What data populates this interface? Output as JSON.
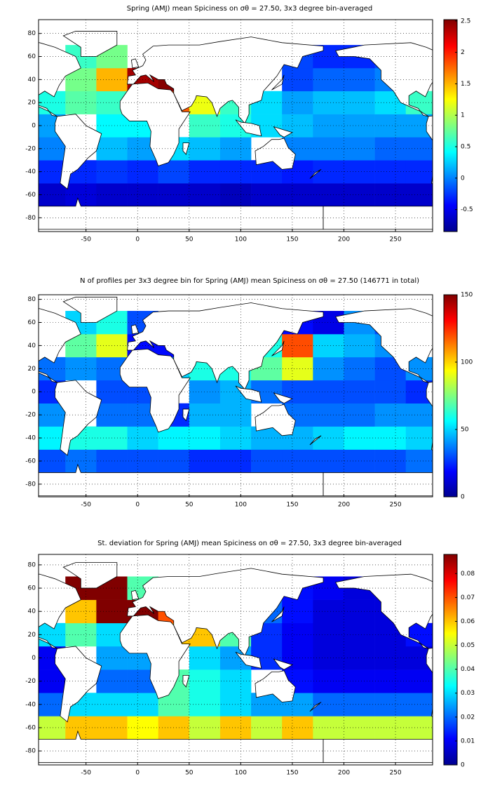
{
  "chart_data": [
    {
      "type": "heatmap",
      "title": "Spring (AMJ) mean Spiciness on σθ = 27.50, 3x3 degree bin-averaged",
      "xbins": [
        -100,
        -70,
        -40,
        -10,
        20,
        50,
        80,
        110,
        140,
        170,
        200,
        230,
        260,
        290
      ],
      "ybins": [
        -90,
        -70,
        -50,
        -30,
        -10,
        10,
        30,
        50,
        70,
        90
      ],
      "values": [
        [
          null,
          null,
          null,
          null,
          null,
          null,
          null,
          null,
          null,
          null,
          null,
          null,
          null
        ],
        [
          -0.6,
          -0.55,
          -0.6,
          -0.6,
          -0.6,
          -0.6,
          -0.65,
          -0.6,
          -0.6,
          -0.6,
          -0.6,
          -0.6,
          -0.6
        ],
        [
          -0.3,
          -0.3,
          -0.25,
          -0.3,
          -0.2,
          -0.3,
          -0.3,
          -0.3,
          -0.35,
          -0.3,
          -0.3,
          -0.3,
          -0.3
        ],
        [
          0,
          null,
          0.2,
          0.1,
          0.3,
          0.2,
          0.1,
          null,
          0,
          0,
          0,
          -0.1,
          -0.1
        ],
        [
          0.1,
          null,
          0.4,
          0.4,
          null,
          0.6,
          0.5,
          0.3,
          0.2,
          0.1,
          0.1,
          0.1,
          0.1
        ],
        [
          0.5,
          0.7,
          0.6,
          null,
          1.8,
          1.2,
          0.6,
          0.3,
          0.1,
          0.2,
          0.2,
          0.3,
          0.6
        ],
        [
          null,
          0.8,
          1.5,
          2.4,
          2.5,
          null,
          null,
          null,
          -0.2,
          -0.1,
          -0.1,
          0,
          null
        ],
        [
          null,
          0.6,
          0.8,
          null,
          null,
          null,
          null,
          null,
          -0.2,
          -0.3,
          -0.3,
          -0.2,
          null
        ],
        [
          null,
          null,
          null,
          null,
          null,
          null,
          null,
          null,
          null,
          null,
          null,
          null,
          null
        ]
      ],
      "xlim": [
        -96,
        286
      ],
      "ylim": [
        -92,
        92
      ],
      "xticks": [
        -50,
        0,
        50,
        100,
        150,
        200,
        250
      ],
      "yticks": [
        -80,
        -60,
        -40,
        -20,
        0,
        20,
        40,
        60,
        80
      ],
      "clim": [
        -0.85,
        2.52
      ],
      "cticks": [
        -0.5,
        0,
        0.5,
        1,
        1.5,
        2,
        2.5
      ],
      "colormap": "jet",
      "grid": true
    },
    {
      "type": "heatmap",
      "title": "N of profiles per 3x3 degree bin for Spring (AMJ) mean Spiciness on σθ = 27.50 (146771 in total)",
      "xbins": [
        -100,
        -70,
        -40,
        -10,
        20,
        50,
        80,
        110,
        140,
        170,
        200,
        230,
        260,
        290
      ],
      "ybins": [
        -90,
        -70,
        -50,
        -30,
        -10,
        10,
        30,
        50,
        70,
        90
      ],
      "values": [
        [
          null,
          null,
          null,
          null,
          null,
          null,
          null,
          null,
          null,
          null,
          null,
          null,
          null
        ],
        [
          30,
          35,
          30,
          30,
          30,
          25,
          25,
          30,
          30,
          30,
          30,
          30,
          35
        ],
        [
          55,
          60,
          60,
          50,
          55,
          55,
          50,
          45,
          45,
          50,
          55,
          55,
          50
        ],
        [
          40,
          null,
          35,
          35,
          25,
          45,
          45,
          null,
          35,
          35,
          35,
          40,
          40
        ],
        [
          25,
          null,
          30,
          30,
          null,
          40,
          45,
          35,
          30,
          30,
          30,
          30,
          25
        ],
        [
          35,
          40,
          35,
          null,
          50,
          60,
          60,
          70,
          90,
          40,
          35,
          30,
          40
        ],
        [
          null,
          70,
          90,
          20,
          20,
          null,
          null,
          60,
          120,
          50,
          45,
          40,
          null
        ],
        [
          null,
          50,
          60,
          30,
          null,
          null,
          null,
          null,
          20,
          15,
          40,
          30,
          null
        ],
        [
          null,
          null,
          null,
          null,
          null,
          null,
          null,
          null,
          null,
          null,
          null,
          null,
          null
        ]
      ],
      "xlim": [
        -96,
        286
      ],
      "ylim": [
        -91,
        84
      ],
      "xticks": [
        -50,
        0,
        50,
        100,
        150,
        200,
        250
      ],
      "yticks": [
        -80,
        -60,
        -40,
        -20,
        0,
        20,
        40,
        60,
        80
      ],
      "clim": [
        0,
        150
      ],
      "cticks": [
        0,
        50,
        100,
        150
      ],
      "colormap": "jet",
      "grid": true
    },
    {
      "type": "heatmap",
      "title": "St. deviation for Spring (AMJ) mean Spiciness on σθ = 27.50, 3x3 degree bin-averaged",
      "xbins": [
        -100,
        -70,
        -40,
        -10,
        20,
        50,
        80,
        110,
        140,
        170,
        200,
        230,
        260,
        290
      ],
      "ybins": [
        -90,
        -70,
        -50,
        -30,
        -10,
        10,
        30,
        50,
        70,
        90
      ],
      "values": [
        [
          null,
          null,
          null,
          null,
          null,
          null,
          null,
          null,
          null,
          null,
          null,
          null,
          null
        ],
        [
          0.05,
          0.06,
          0.06,
          0.055,
          0.06,
          0.05,
          0.06,
          0.05,
          0.06,
          0.05,
          0.05,
          0.05,
          0.05
        ],
        [
          0.02,
          0.03,
          0.03,
          0.03,
          0.04,
          0.035,
          0.03,
          0.025,
          0.025,
          0.02,
          0.02,
          0.02,
          0.02
        ],
        [
          0.01,
          null,
          0.02,
          0.02,
          0.04,
          0.035,
          0.03,
          null,
          0.012,
          0.01,
          0.01,
          0.01,
          0.01
        ],
        [
          0.01,
          null,
          0.025,
          0.025,
          null,
          0.03,
          0.025,
          0.015,
          0.01,
          0.008,
          0.008,
          0.008,
          0.008
        ],
        [
          0.03,
          0.04,
          0.03,
          null,
          0.06,
          0.06,
          0.04,
          0.015,
          0.01,
          0.008,
          0.008,
          0.008,
          0.012
        ],
        [
          null,
          0.06,
          0.088,
          0.088,
          0.07,
          null,
          null,
          0.02,
          0.012,
          0.008,
          0.008,
          0.008,
          null
        ],
        [
          null,
          0.088,
          0.088,
          0.04,
          null,
          null,
          null,
          null,
          0.012,
          0.01,
          0.008,
          0.008,
          null
        ],
        [
          null,
          null,
          null,
          null,
          null,
          null,
          null,
          null,
          null,
          null,
          null,
          null,
          null
        ]
      ],
      "xlim": [
        -96,
        286
      ],
      "ylim": [
        -92,
        89
      ],
      "xticks": [
        -50,
        0,
        50,
        100,
        150,
        200,
        250
      ],
      "yticks": [
        -80,
        -60,
        -40,
        -20,
        0,
        20,
        40,
        60,
        80
      ],
      "clim": [
        0,
        0.088
      ],
      "cticks": [
        0,
        0.01,
        0.02,
        0.03,
        0.04,
        0.05,
        0.06,
        0.07,
        0.08
      ],
      "colormap": "jet",
      "grid": true
    }
  ]
}
